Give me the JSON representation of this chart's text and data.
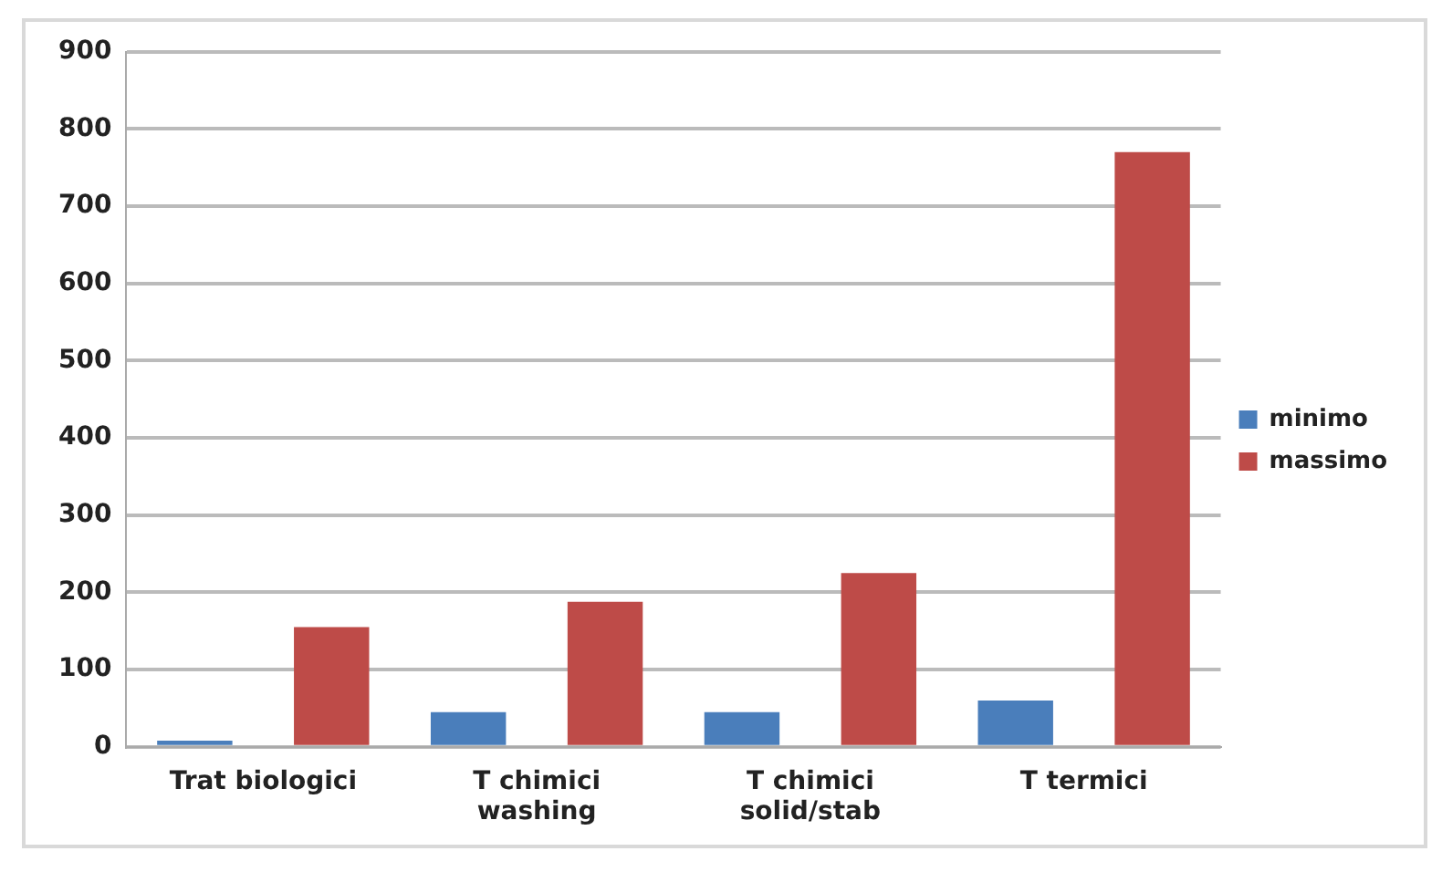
{
  "chart_data": {
    "type": "bar",
    "categories": [
      [
        "Trat biologici"
      ],
      [
        "T chimici",
        "washing"
      ],
      [
        "T chimici",
        "solid/stab"
      ],
      [
        "T termici"
      ]
    ],
    "series": [
      {
        "name": "minimo",
        "color": "#4a7ebb",
        "values": [
          8,
          45,
          45,
          60
        ]
      },
      {
        "name": "massimo",
        "color": "#be4b48",
        "values": [
          155,
          188,
          225,
          770
        ]
      }
    ],
    "ylim": [
      0,
      900
    ],
    "yticks": [
      0,
      100,
      200,
      300,
      400,
      500,
      600,
      700,
      800,
      900
    ],
    "grid": "y",
    "legend": "right"
  }
}
